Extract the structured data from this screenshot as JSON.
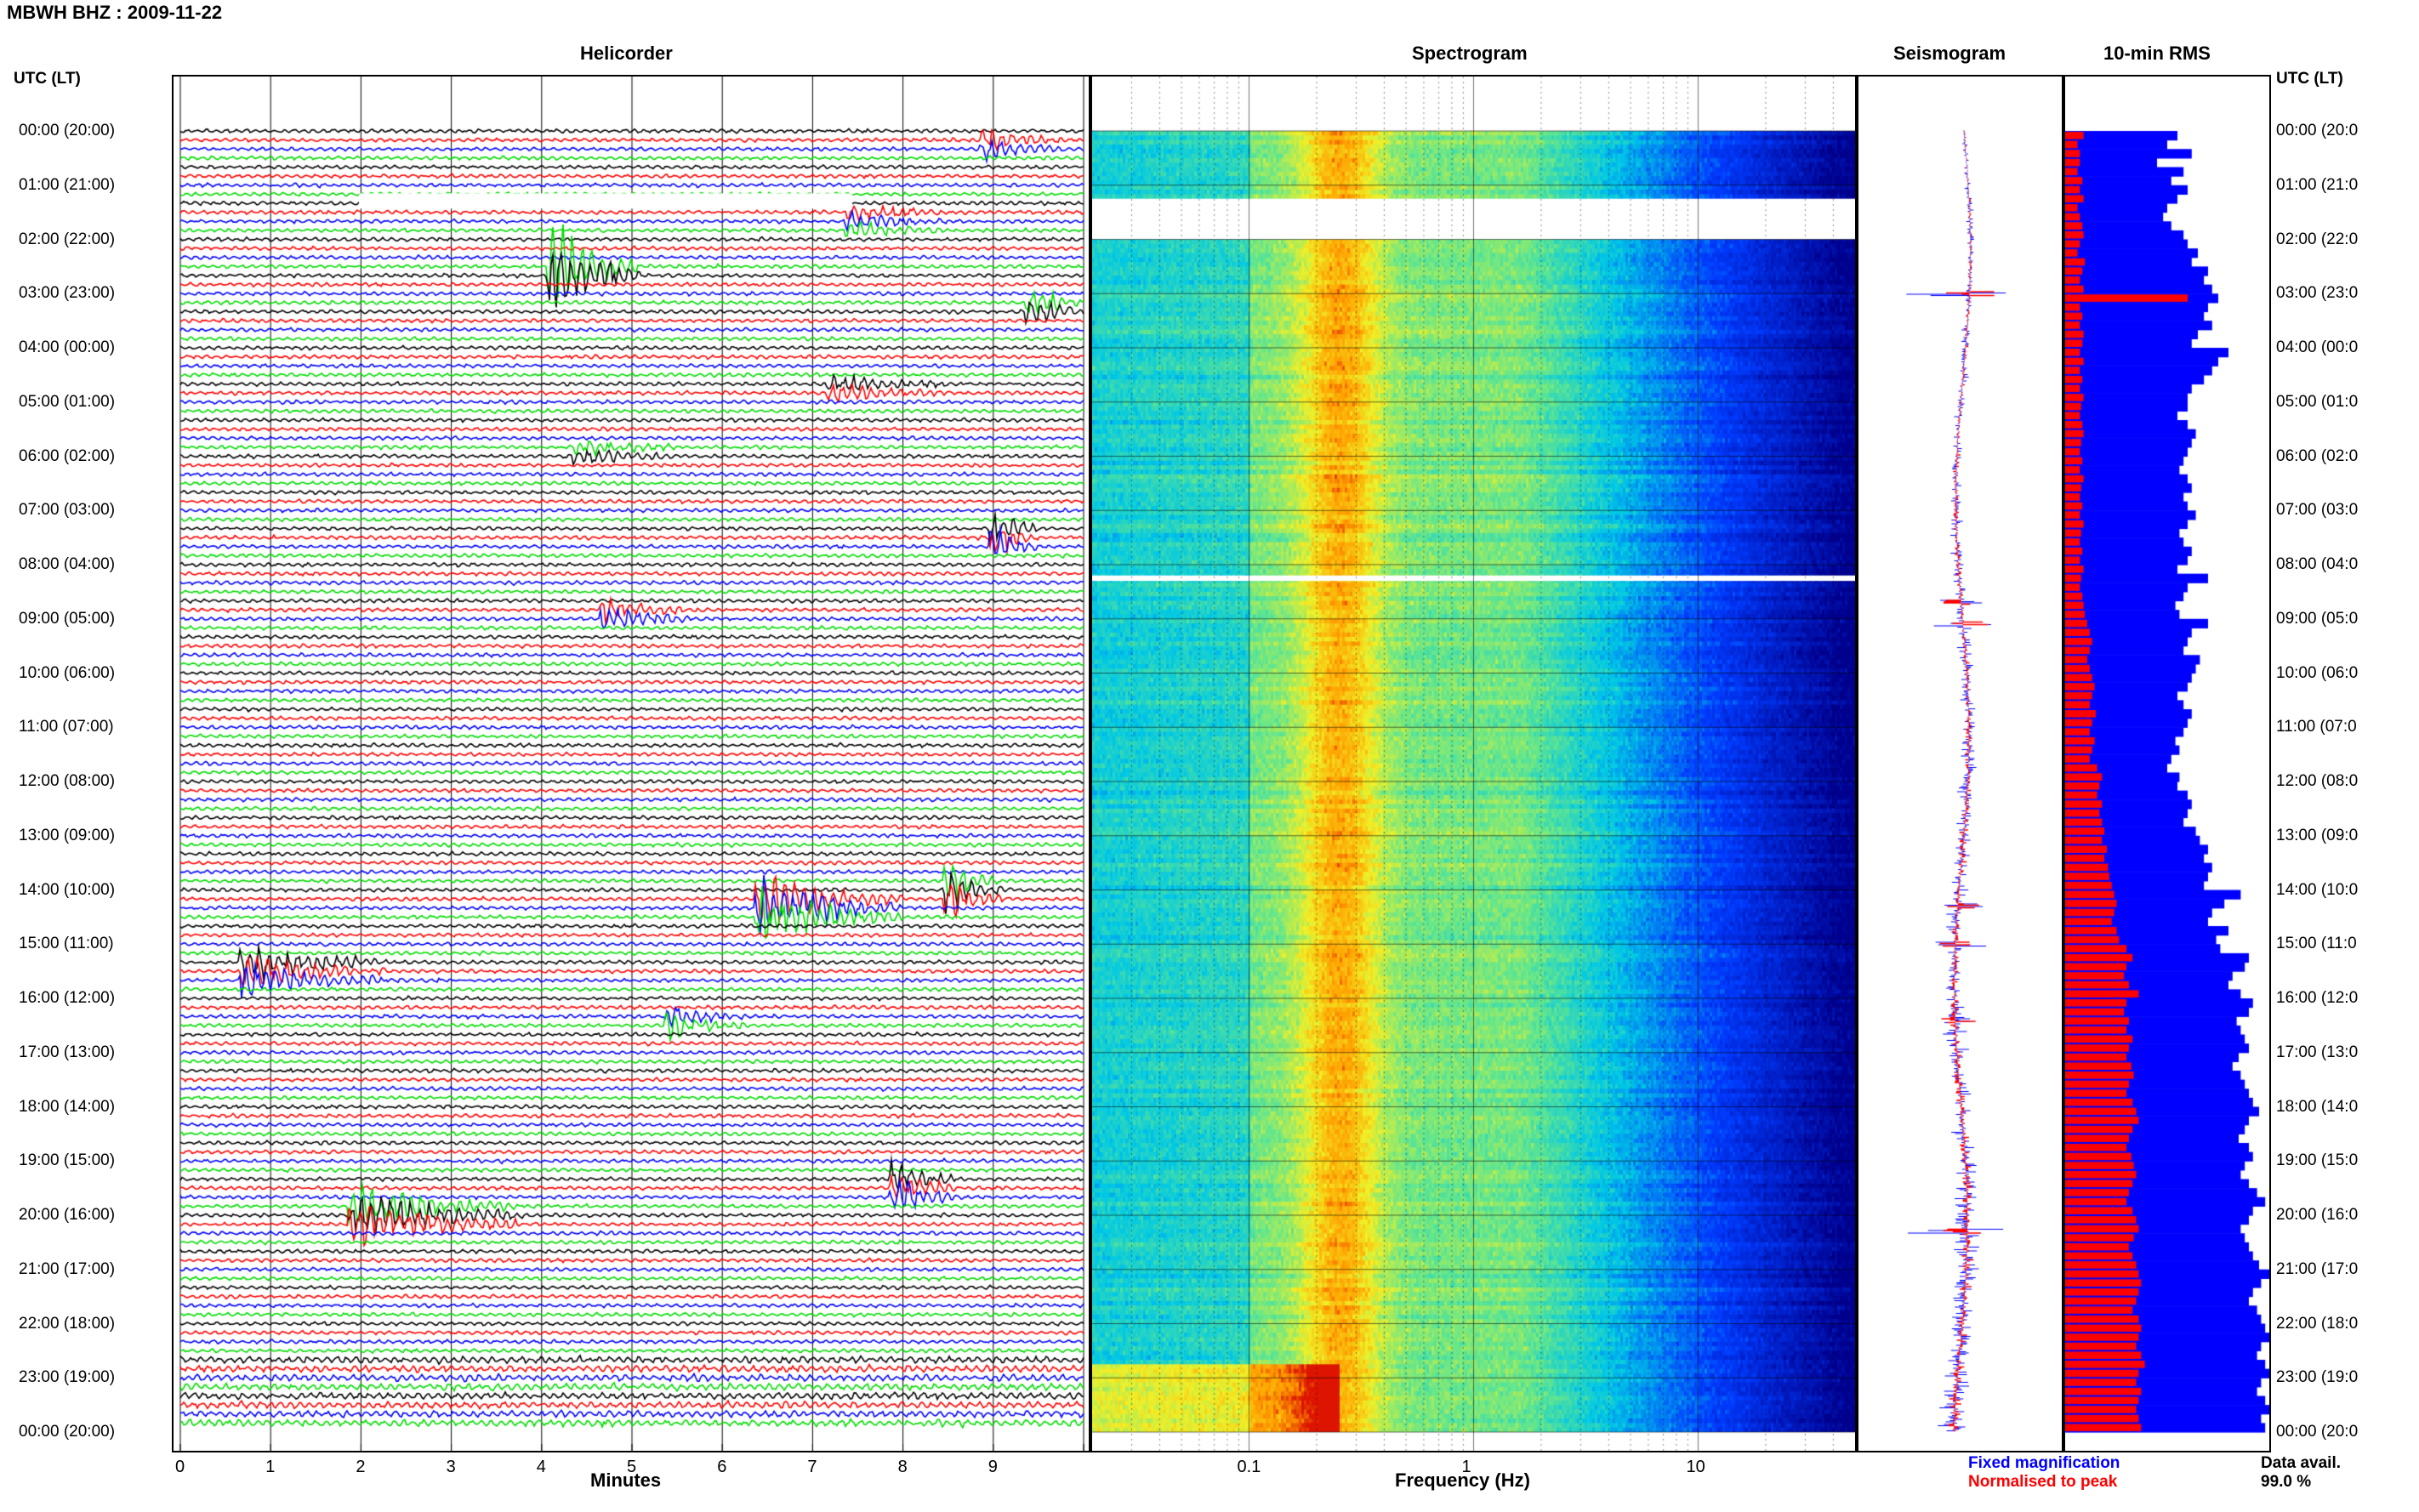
{
  "header": {
    "title": "MBWH BHZ : 2009-11-22"
  },
  "panels": {
    "helicorder": "Helicorder",
    "spectrogram": "Spectrogram",
    "seismogram": "Seismogram",
    "rms": "10-min RMS"
  },
  "time_axis": {
    "left_title": "UTC (LT)",
    "right_title": "UTC (LT)",
    "labels": [
      "00:00 (20:00)",
      "01:00 (21:00)",
      "02:00 (22:00)",
      "03:00 (23:00)",
      "04:00 (00:00)",
      "05:00 (01:00)",
      "06:00 (02:00)",
      "07:00 (03:00)",
      "08:00 (04:00)",
      "09:00 (05:00)",
      "10:00 (06:00)",
      "11:00 (07:00)",
      "12:00 (08:00)",
      "13:00 (09:00)",
      "14:00 (10:00)",
      "15:00 (11:00)",
      "16:00 (12:00)",
      "17:00 (13:00)",
      "18:00 (14:00)",
      "19:00 (15:00)",
      "20:00 (16:00)",
      "21:00 (17:00)",
      "22:00 (18:00)",
      "23:00 (19:00)",
      "00:00 (20:00)"
    ],
    "right_labels": [
      "00:00 (20:0",
      "01:00 (21:0",
      "02:00 (22:0",
      "03:00 (23:0",
      "04:00 (00:0",
      "05:00 (01:0",
      "06:00 (02:0",
      "07:00 (03:0",
      "08:00 (04:0",
      "09:00 (05:0",
      "10:00 (06:0",
      "11:00 (07:0",
      "12:00 (08:0",
      "13:00 (09:0",
      "14:00 (10:0",
      "15:00 (11:0",
      "16:00 (12:0",
      "17:00 (13:0",
      "18:00 (14:0",
      "19:00 (15:0",
      "20:00 (16:0",
      "21:00 (17:0",
      "22:00 (18:0",
      "23:00 (19:0",
      "00:00 (20:0"
    ]
  },
  "helicorder_axis": {
    "xlabel": "Minutes",
    "ticks": [
      "0",
      "1",
      "2",
      "3",
      "4",
      "5",
      "6",
      "7",
      "8",
      "9"
    ]
  },
  "spectrogram_axis": {
    "xlabel": "Frequency (Hz)",
    "ticks": [
      "0.1",
      "1",
      "10"
    ]
  },
  "legend": {
    "fixed": "Fixed magnification",
    "normalised": "Normalised to peak",
    "fixed_color": "#0000ff",
    "normalised_color": "#ff0000"
  },
  "data_avail": {
    "label": "Data avail.",
    "value": "99.0 %"
  },
  "colors": {
    "trace_cycle": [
      "#000000",
      "#ff0000",
      "#0000ff",
      "#00dd00"
    ],
    "rms_fixed": "#0000ff",
    "rms_normalised": "#ff0000"
  },
  "chart_data": [
    {
      "type": "line",
      "title": "Helicorder",
      "xlabel": "Minutes",
      "xlim": [
        0,
        10
      ],
      "rows": 144,
      "events": [
        {
          "hour": 0.2,
          "minute": 9.0,
          "amp": 1.2,
          "dur": 0.8
        },
        {
          "hour": 1.7,
          "minute": 7.5,
          "amp": 1.0,
          "dur": 1.0
        },
        {
          "hour": 2.6,
          "minute": 4.2,
          "amp": 5.0,
          "dur": 0.9
        },
        {
          "hour": 3.3,
          "minute": 9.5,
          "amp": 1.5,
          "dur": 0.6
        },
        {
          "hour": 4.8,
          "minute": 7.3,
          "amp": 1.0,
          "dur": 1.2
        },
        {
          "hour": 5.9,
          "minute": 4.5,
          "amp": 1.0,
          "dur": 1.0
        },
        {
          "hour": 7.5,
          "minute": 9.1,
          "amp": 2.0,
          "dur": 0.4
        },
        {
          "hour": 8.9,
          "minute": 4.8,
          "amp": 1.2,
          "dur": 1.0
        },
        {
          "hour": 14.3,
          "minute": 6.5,
          "amp": 3.0,
          "dur": 1.5
        },
        {
          "hour": 14.0,
          "minute": 8.6,
          "amp": 2.0,
          "dur": 0.5
        },
        {
          "hour": 15.5,
          "minute": 0.8,
          "amp": 2.0,
          "dur": 1.5
        },
        {
          "hour": 16.4,
          "minute": 5.5,
          "amp": 1.3,
          "dur": 0.8
        },
        {
          "hour": 19.5,
          "minute": 8.0,
          "amp": 2.0,
          "dur": 0.6
        },
        {
          "hour": 20.0,
          "minute": 2.0,
          "amp": 2.5,
          "dur": 1.8
        }
      ]
    },
    {
      "type": "heatmap",
      "title": "Spectrogram",
      "xlabel": "Frequency (Hz)",
      "xscale": "log",
      "xlim": [
        0.02,
        50
      ],
      "ylim_hours": [
        0,
        24
      ],
      "gaps_hours": [
        [
          1.25,
          2.0
        ],
        [
          8.2,
          8.3
        ]
      ]
    },
    {
      "type": "line",
      "title": "Seismogram",
      "series": [
        {
          "name": "Fixed magnification",
          "color": "#0000ff"
        },
        {
          "name": "Normalised to peak",
          "color": "#ff0000"
        }
      ]
    },
    {
      "type": "bar",
      "title": "10-min RMS",
      "series": [
        {
          "name": "Fixed magnification",
          "values": [
            0.55,
            0.5,
            0.62,
            0.45,
            0.58,
            0.52,
            0.6,
            0.55,
            0.5,
            0.48,
            0.52,
            0.58,
            0.6,
            0.65,
            0.62,
            0.7,
            0.68,
            0.72,
            0.75,
            0.7,
            0.68,
            0.72,
            0.65,
            0.62,
            0.8,
            0.75,
            0.72,
            0.68,
            0.62,
            0.6,
            0.6,
            0.55,
            0.6,
            0.64,
            0.62,
            0.6,
            0.58,
            0.56,
            0.6,
            0.62,
            0.58,
            0.6,
            0.64,
            0.6,
            0.56,
            0.58,
            0.62,
            0.6,
            0.55,
            0.7,
            0.6,
            0.58,
            0.54,
            0.56,
            0.7,
            0.62,
            0.6,
            0.58,
            0.66,
            0.64,
            0.62,
            0.6,
            0.55,
            0.58,
            0.62,
            0.6,
            0.58,
            0.54,
            0.56,
            0.52,
            0.5,
            0.56,
            0.55,
            0.6,
            0.62,
            0.6,
            0.58,
            0.64,
            0.66,
            0.7,
            0.68,
            0.72,
            0.7,
            0.68,
            0.86,
            0.78,
            0.72,
            0.7,
            0.8,
            0.74,
            0.76,
            0.9,
            0.88,
            0.82,
            0.8,
            0.86,
            0.92,
            0.9,
            0.84,
            0.86,
            0.88,
            0.9,
            0.85,
            0.82,
            0.86,
            0.88,
            0.9,
            0.92,
            0.95,
            0.9,
            0.88,
            0.85,
            0.9,
            0.92,
            0.88,
            0.86,
            0.9,
            0.94,
            0.98,
            0.92,
            0.9,
            0.86,
            0.88,
            0.9,
            0.92,
            0.95,
            1.0,
            0.96,
            0.92,
            0.9,
            0.94,
            0.96,
            0.98,
            1.0,
            0.96,
            0.94,
            0.98,
            1.0,
            0.96,
            0.94,
            0.98,
            1.0,
            0.96,
            0.98
          ]
        },
        {
          "name": "Normalised to peak",
          "values": [
            0.15,
            0.1,
            0.12,
            0.12,
            0.1,
            0.14,
            0.12,
            0.15,
            0.1,
            0.12,
            0.14,
            0.15,
            0.12,
            0.1,
            0.16,
            0.14,
            0.12,
            0.15,
            1.0,
            0.12,
            0.14,
            0.12,
            0.15,
            0.14,
            0.12,
            0.15,
            0.12,
            0.14,
            0.12,
            0.15,
            0.13,
            0.12,
            0.14,
            0.15,
            0.13,
            0.12,
            0.14,
            0.12,
            0.15,
            0.13,
            0.12,
            0.14,
            0.12,
            0.15,
            0.13,
            0.12,
            0.14,
            0.12,
            0.15,
            0.13,
            0.12,
            0.14,
            0.15,
            0.16,
            0.18,
            0.2,
            0.22,
            0.2,
            0.18,
            0.2,
            0.22,
            0.24,
            0.22,
            0.2,
            0.25,
            0.22,
            0.2,
            0.24,
            0.22,
            0.2,
            0.26,
            0.3,
            0.28,
            0.26,
            0.3,
            0.28,
            0.3,
            0.32,
            0.3,
            0.34,
            0.32,
            0.35,
            0.36,
            0.38,
            0.4,
            0.42,
            0.4,
            0.38,
            0.42,
            0.44,
            0.5,
            0.55,
            0.5,
            0.48,
            0.52,
            0.6,
            0.5,
            0.48,
            0.52,
            0.5,
            0.55,
            0.52,
            0.5,
            0.54,
            0.56,
            0.52,
            0.5,
            0.55,
            0.58,
            0.6,
            0.55,
            0.52,
            0.5,
            0.54,
            0.56,
            0.58,
            0.55,
            0.52,
            0.5,
            0.55,
            0.58,
            0.6,
            0.56,
            0.52,
            0.55,
            0.58,
            0.6,
            0.62,
            0.6,
            0.58,
            0.55,
            0.6,
            0.62,
            0.6,
            0.58,
            0.62,
            0.65,
            0.6,
            0.58,
            0.62,
            0.6,
            0.58,
            0.6,
            0.62
          ]
        }
      ]
    }
  ]
}
